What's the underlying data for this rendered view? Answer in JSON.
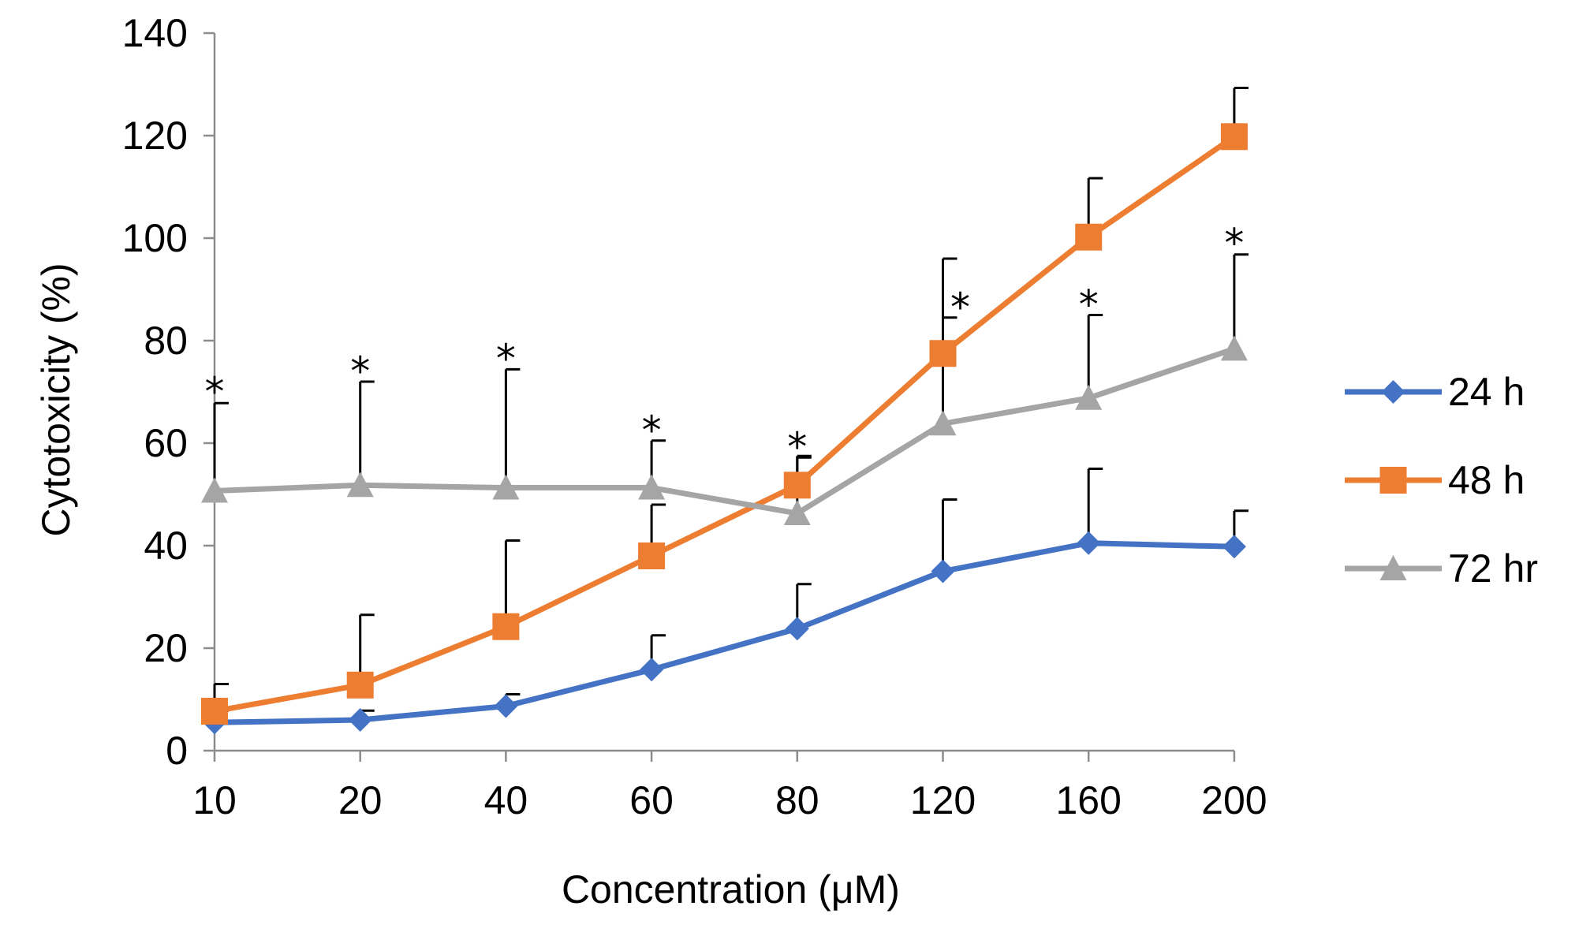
{
  "chart_data": {
    "type": "line",
    "title": "",
    "xlabel": "Concentration (μM)",
    "ylabel": "Cytotoxicity (%)",
    "ylim": [
      0,
      140
    ],
    "yticks": [
      0,
      20,
      40,
      60,
      80,
      100,
      120,
      140
    ],
    "categories": [
      "10",
      "20",
      "40",
      "60",
      "80",
      "120",
      "160",
      "200"
    ],
    "legend_position": "right",
    "series": [
      {
        "name": "24 h",
        "color": "#4472C4",
        "marker": "diamond",
        "values": [
          5.5,
          6,
          8.7,
          15.8,
          23.8,
          35,
          40.5,
          39.8
        ],
        "error_upper": [
          7.8,
          7.8,
          11,
          22.5,
          32.5,
          49,
          55,
          46.8
        ]
      },
      {
        "name": "48 h",
        "color": "#ED7D31",
        "marker": "square",
        "values": [
          7.7,
          12.8,
          24.2,
          38,
          51.8,
          77.5,
          100.2,
          119.8
        ],
        "error_upper": [
          13,
          26.5,
          41,
          48,
          57.5,
          96,
          111.7,
          129.3
        ]
      },
      {
        "name": "72 hr",
        "color": "#A5A5A5",
        "marker": "triangle",
        "values": [
          50.7,
          51.8,
          51.3,
          51.3,
          46.3,
          63.8,
          68.8,
          78.4
        ],
        "error_upper": [
          67.8,
          72,
          74.4,
          60.5,
          57.2,
          84.5,
          85,
          96.8
        ]
      }
    ],
    "annotations": [
      {
        "category_index": 0,
        "text": "*",
        "y": 72
      },
      {
        "category_index": 1,
        "text": "*",
        "y": 76
      },
      {
        "category_index": 2,
        "text": "*",
        "y": 78.5
      },
      {
        "category_index": 3,
        "text": "*",
        "y": 64.5
      },
      {
        "category_index": 4,
        "text": "*",
        "y": 61.2
      },
      {
        "category_index": 5,
        "text": "*",
        "y": 88.5,
        "offset": "right"
      },
      {
        "category_index": 6,
        "text": "*",
        "y": 89
      },
      {
        "category_index": 7,
        "text": "*",
        "y": 101
      }
    ]
  }
}
